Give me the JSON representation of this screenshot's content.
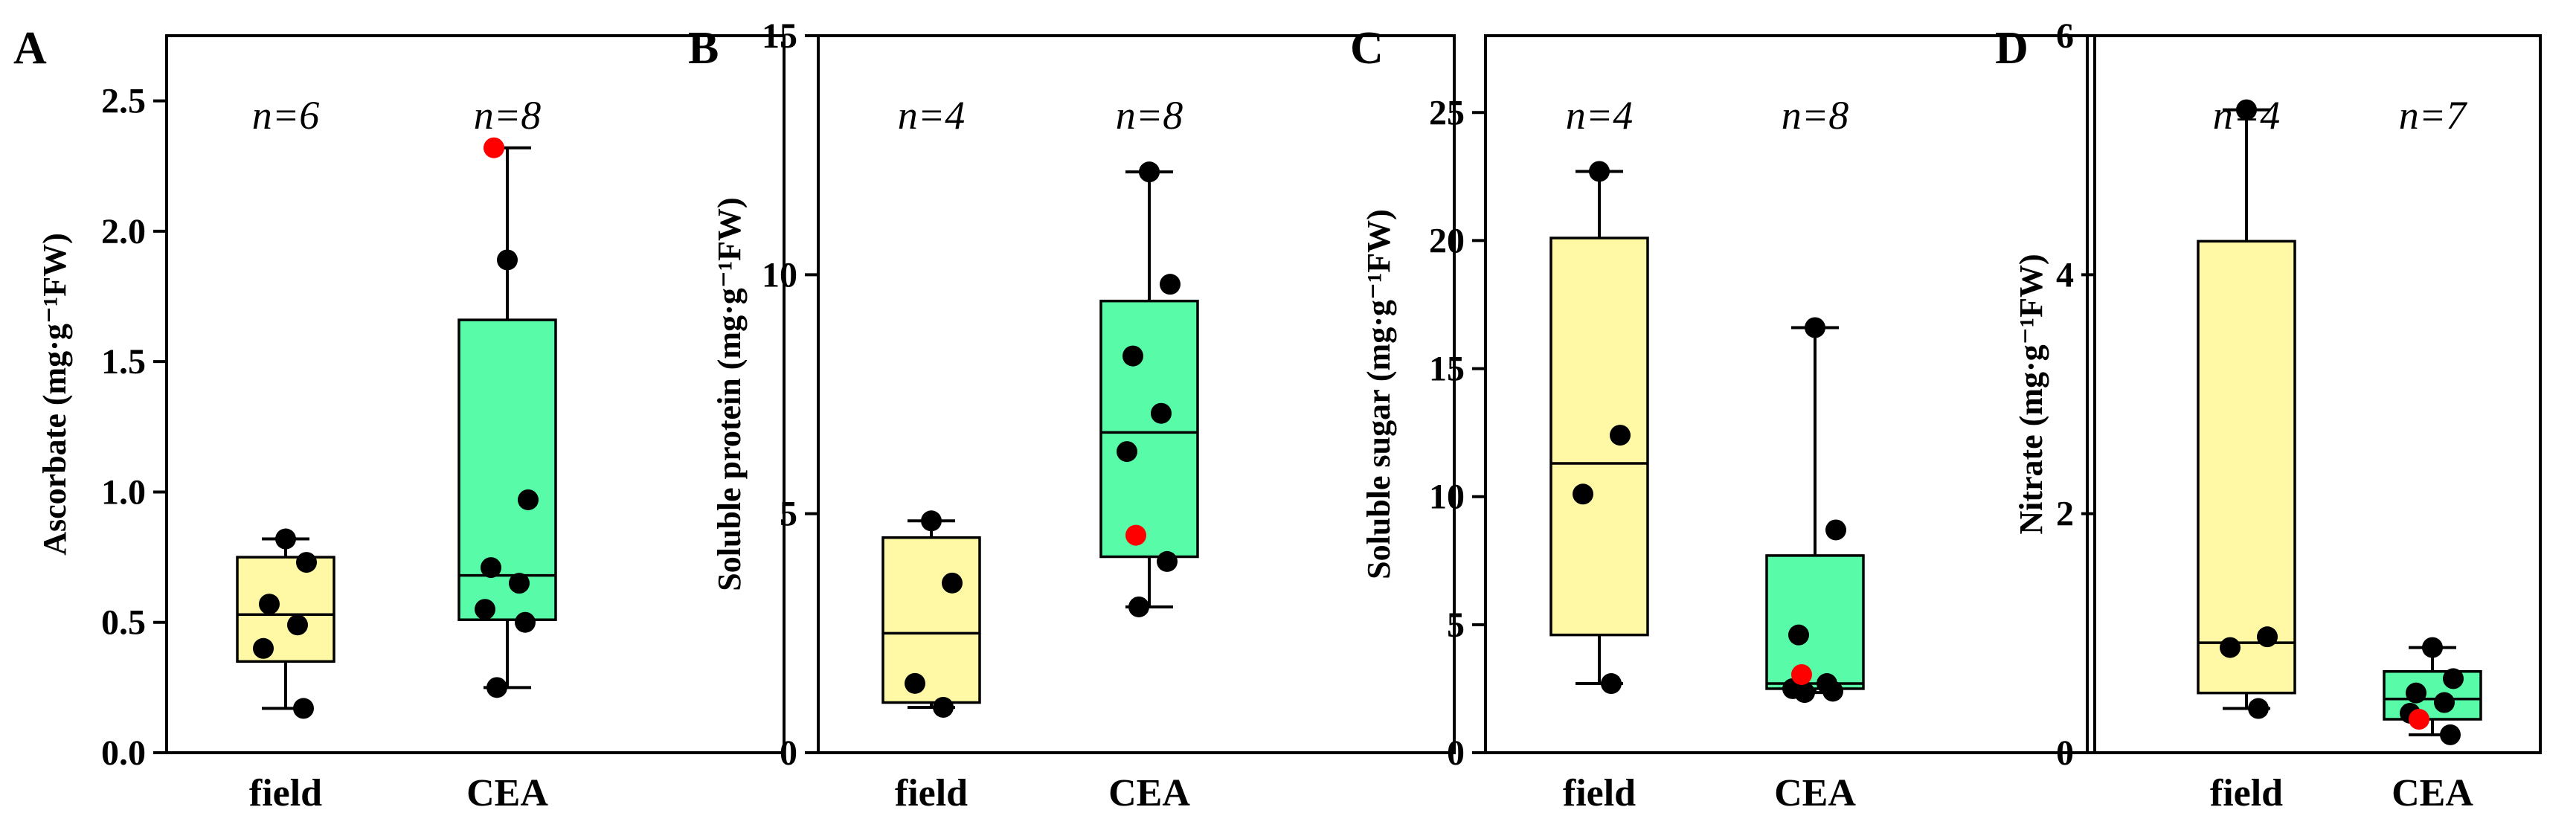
{
  "colors": {
    "field_box": "#fff9a6",
    "cea_box": "#58fca8",
    "point": "#000000",
    "highlight_point": "#ff0000"
  },
  "chart_data": [
    {
      "type": "box",
      "panel": "A",
      "ylabel": "Ascorbate (mg·g⁻¹FW)",
      "ylim": [
        0,
        2.75
      ],
      "yticks": [
        0.0,
        0.5,
        1.0,
        1.5,
        2.0,
        2.5
      ],
      "ytick_labels": [
        "0.0",
        "0.5",
        "1.0",
        "1.5",
        "2.0",
        "2.5"
      ],
      "categories": [
        "field",
        "CEA"
      ],
      "n_labels": [
        "n=6",
        "n=8"
      ],
      "boxes": [
        {
          "whisker_low": 0.17,
          "q1": 0.35,
          "median": 0.53,
          "q3": 0.75,
          "whisker_high": 0.82,
          "points": [
            0.82,
            0.73,
            0.57,
            0.49,
            0.4,
            0.17
          ],
          "highlight": []
        },
        {
          "whisker_low": 0.25,
          "q1": 0.51,
          "median": 0.68,
          "q3": 1.66,
          "whisker_high": 2.32,
          "points": [
            1.89,
            0.97,
            0.71,
            0.65,
            0.55,
            0.5,
            0.25
          ],
          "highlight": [
            2.32
          ]
        }
      ]
    },
    {
      "type": "box",
      "panel": "B",
      "ylabel": "Soluble protein (mg·g⁻¹FW)",
      "ylim": [
        0,
        15
      ],
      "yticks": [
        0,
        5,
        10,
        15
      ],
      "ytick_labels": [
        "0",
        "5",
        "10",
        "15"
      ],
      "categories": [
        "field",
        "CEA"
      ],
      "n_labels": [
        "n=4",
        "n=8"
      ],
      "boxes": [
        {
          "whisker_low": 0.95,
          "q1": 1.05,
          "median": 2.5,
          "q3": 4.5,
          "whisker_high": 4.85,
          "points": [
            4.85,
            3.55,
            1.45,
            0.95
          ],
          "highlight": []
        },
        {
          "whisker_low": 3.05,
          "q1": 4.1,
          "median": 6.7,
          "q3": 9.45,
          "whisker_high": 12.15,
          "points": [
            12.15,
            9.8,
            8.3,
            7.1,
            6.3,
            4.0,
            3.05
          ],
          "highlight": [
            4.55
          ]
        }
      ]
    },
    {
      "type": "box",
      "panel": "C",
      "ylabel": "Soluble sugar (mg·g⁻¹FW)",
      "ylim": [
        0,
        28
      ],
      "yticks": [
        0,
        5,
        10,
        15,
        20,
        25
      ],
      "ytick_labels": [
        "0",
        "5",
        "10",
        "15",
        "20",
        "25"
      ],
      "categories": [
        "field",
        "CEA"
      ],
      "n_labels": [
        "n=4",
        "n=8"
      ],
      "boxes": [
        {
          "whisker_low": 2.7,
          "q1": 4.6,
          "median": 11.3,
          "q3": 20.1,
          "whisker_high": 22.7,
          "points": [
            22.7,
            12.4,
            10.1,
            2.7
          ],
          "highlight": []
        },
        {
          "whisker_low": 2.35,
          "q1": 2.5,
          "median": 2.7,
          "q3": 7.7,
          "whisker_high": 16.6,
          "points": [
            16.6,
            8.7,
            4.6,
            2.7,
            2.5,
            2.4,
            2.35
          ],
          "highlight": [
            3.05
          ]
        }
      ]
    },
    {
      "type": "box",
      "panel": "D",
      "ylabel": "Nitrate (mg·g⁻¹FW)",
      "ylim": [
        0,
        6
      ],
      "yticks": [
        0,
        2,
        4,
        6
      ],
      "ytick_labels": [
        "0",
        "2",
        "4",
        "6"
      ],
      "categories": [
        "field",
        "CEA"
      ],
      "n_labels": [
        "n=4",
        "n=7"
      ],
      "boxes": [
        {
          "whisker_low": 0.37,
          "q1": 0.5,
          "median": 0.92,
          "q3": 4.28,
          "whisker_high": 5.38,
          "points": [
            5.38,
            0.97,
            0.88,
            0.37
          ],
          "highlight": []
        },
        {
          "whisker_low": 0.15,
          "q1": 0.28,
          "median": 0.45,
          "q3": 0.68,
          "whisker_high": 0.88,
          "points": [
            0.88,
            0.62,
            0.5,
            0.42,
            0.33,
            0.15
          ],
          "highlight": [
            0.28
          ]
        }
      ]
    }
  ]
}
